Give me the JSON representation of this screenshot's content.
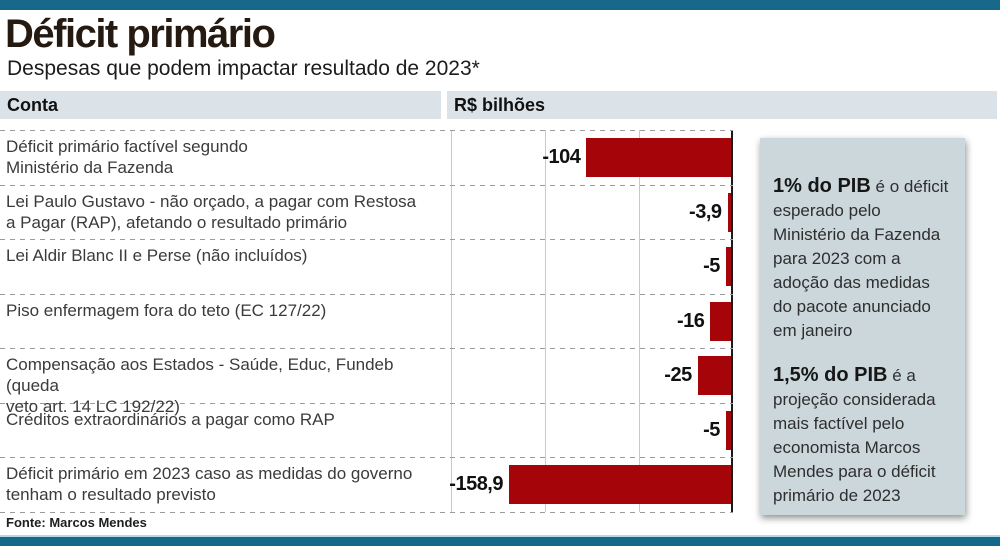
{
  "header": {
    "title": "Déficit primário",
    "subtitle": "Despesas que podem impactar resultado de 2023*"
  },
  "table_header": {
    "conta": "Conta",
    "unit": "R$ bilhões"
  },
  "chart_data": {
    "type": "bar",
    "orientation": "horizontal",
    "unit": "R$ bilhões",
    "xlim": [
      -200,
      0
    ],
    "grid": true,
    "bar_color": "#a50408",
    "categories": [
      "Déficit primário factível segundo\nMinistério da Fazenda",
      "Lei Paulo Gustavo - não orçado, a pagar com Restosa\na Pagar (RAP), afetando o resultado primário",
      "Lei Aldir Blanc II e Perse (não incluídos)",
      "Piso enfermagem fora do teto (EC 127/22)",
      "Compensação aos Estados - Saúde, Educ, Fundeb (queda\nveto art. 14 LC 192/22)",
      "Créditos extraordinários a pagar como RAP",
      "Déficit primário em 2023 caso as medidas do governo\ntenham o resultado previsto"
    ],
    "values": [
      -104,
      -3.9,
      -5,
      -16,
      -25,
      -5,
      -158.9
    ],
    "value_labels": [
      "-104",
      "-3,9",
      "-5",
      "-16",
      "-25",
      "-5",
      "-158,9"
    ]
  },
  "sidebar": {
    "notes": [
      {
        "lead": "1% do PIB",
        "text": "é o déficit esperado pelo Ministério da Fazenda para 2023 com a adoção das medidas do pacote anunciado em janeiro"
      },
      {
        "lead": "1,5% do PIB",
        "text": "é a projeção considerada mais factível pelo economista Marcos Mendes para o déficit primário de 2023"
      }
    ]
  },
  "footer": {
    "source": "Fonte: Marcos Mendes"
  },
  "colors": {
    "accent_teal": "#17698b",
    "bar_red": "#a50408",
    "header_bg": "#dce3e8",
    "sidebar_bg": "#ccd7dc"
  }
}
